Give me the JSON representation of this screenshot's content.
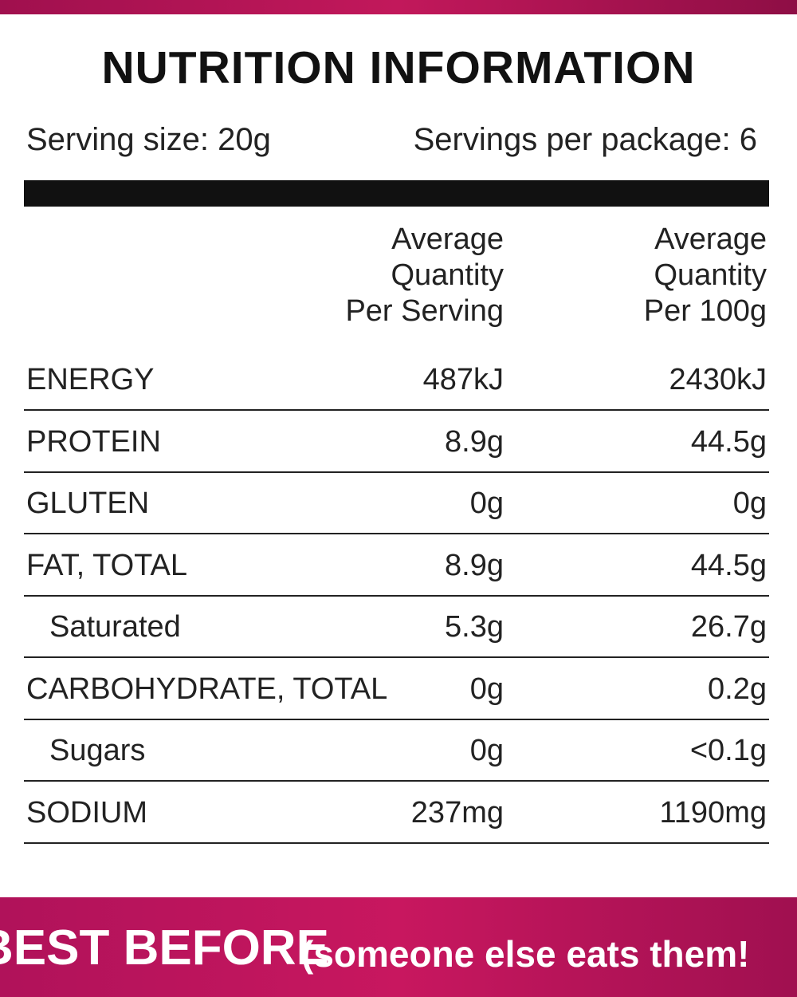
{
  "title": "NUTRITION INFORMATION",
  "serving_size": "Serving size: 20g",
  "servings_per_package": "Servings per package: 6",
  "table": {
    "columns": [
      [
        "Average",
        "Quantity",
        "Per Serving"
      ],
      [
        "Average",
        "Quantity",
        "Per 100g"
      ]
    ],
    "rows": [
      [
        "ENERGY",
        "487kJ",
        "2430kJ"
      ],
      [
        "PROTEIN",
        "8.9g",
        "44.5g"
      ],
      [
        "GLUTEN",
        "0g",
        "0g"
      ],
      [
        "FAT, TOTAL",
        "8.9g",
        "44.5g"
      ],
      [
        "Saturated",
        "5.3g",
        "26.7g"
      ],
      [
        "CARBOHYDRATE, TOTAL",
        "0g",
        "0.2g"
      ],
      [
        "Sugars",
        "0g",
        "<0.1g"
      ],
      [
        "SODIUM",
        "237mg",
        "1190mg"
      ]
    ]
  },
  "footer": {
    "best_before": "BEST BEFORE",
    "note": "(someone else eats them!"
  }
}
